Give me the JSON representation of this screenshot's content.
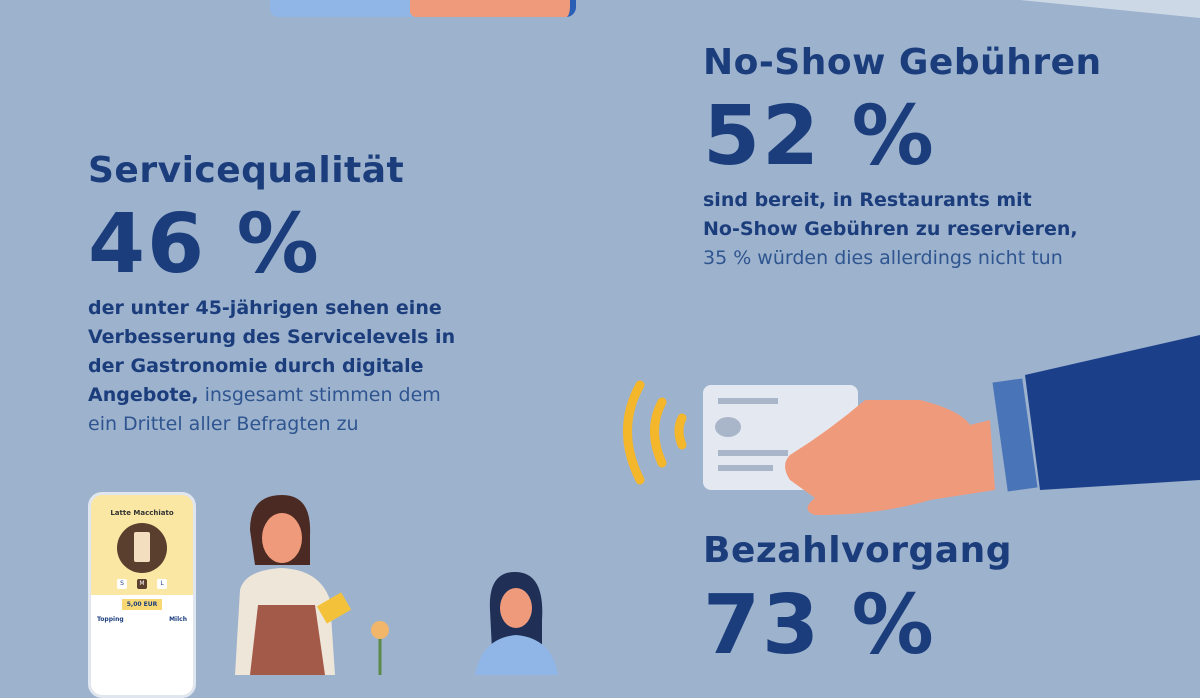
{
  "colors": {
    "background": "#9db2cd",
    "text": "#1b3d7c",
    "accent_signal": "#f4b62a"
  },
  "no_show": {
    "title": "No-Show Gebühren",
    "value": "52 %",
    "text_bold_1": "sind bereit, in Restaurants mit",
    "text_bold_2": "No-Show Gebühren zu reservieren,",
    "text_light": "35 % würden dies allerdings nicht tun"
  },
  "service": {
    "title": "Servicequalität",
    "value": "46 %",
    "text_bold_1": "der unter 45-jährigen sehen eine",
    "text_bold_2": "Verbesserung des Servicelevels in",
    "text_bold_3": "der Gastronomie durch digitale",
    "text_bold_4": "Angebote,",
    "text_light_4": " insgesamt stimmen dem",
    "text_light_5": "ein Drittel aller Befragten zu"
  },
  "payment": {
    "title": "Bezahlvorgang",
    "value": "73 %"
  },
  "phone": {
    "title": "Latte Macchiato",
    "sizes": [
      "S",
      "M",
      "L"
    ],
    "price": "5,00 EUR",
    "topping_label": "Topping",
    "milk_label": "Milch"
  },
  "icons": [
    "contactless-signal-icon",
    "payment-card-icon",
    "hand-icon",
    "phone-app-icon",
    "waitress-illustration",
    "customer-illustration",
    "flower-icon"
  ]
}
